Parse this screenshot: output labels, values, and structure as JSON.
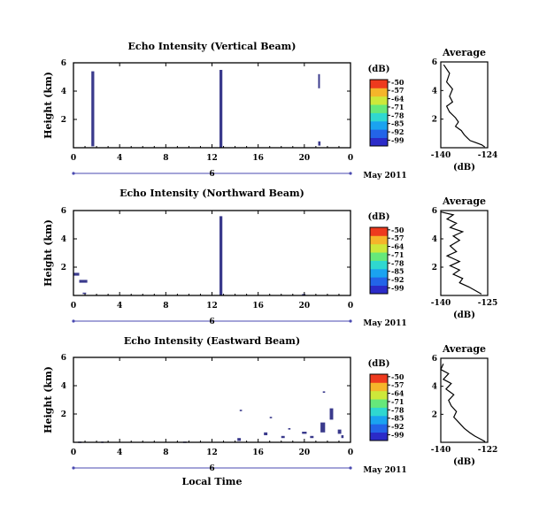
{
  "xlabel": "Local Time",
  "colorbar_ticks": [
    "-50",
    "-57",
    "-64",
    "-71",
    "-78",
    "-85",
    "-92",
    "-99"
  ],
  "colorbar_unit": "(dB)",
  "date_label": "May 2011",
  "day_label": "6",
  "x_ticks": [
    "0",
    "4",
    "8",
    "12",
    "16",
    "20",
    "0"
  ],
  "avg_xlabel": "(dB)",
  "chart_data": [
    {
      "type": "heatmap",
      "title": "Echo Intensity (Vertical Beam)",
      "ylabel": "Height (km)",
      "y_ticks": [
        "6",
        "4",
        "2"
      ],
      "xlim": [
        0,
        24
      ],
      "ylim": [
        0,
        6
      ],
      "echoes": [
        {
          "t0": 1.55,
          "t1": 1.8,
          "h0": 0.1,
          "h1": 5.4
        },
        {
          "t0": 12.65,
          "t1": 12.9,
          "h0": 0.0,
          "h1": 5.5
        },
        {
          "t0": 21.2,
          "t1": 21.4,
          "h0": 0.15,
          "h1": 0.45
        },
        {
          "t0": 21.2,
          "t1": 21.35,
          "h0": 4.2,
          "h1": 5.2
        }
      ]
    },
    {
      "type": "line",
      "title": "Average",
      "xlabel": "(dB)",
      "x_ticks": [
        "-140",
        "-124"
      ],
      "y_ticks": [
        "6",
        "4",
        "2"
      ],
      "xlim": [
        -140,
        -124
      ],
      "ylim": [
        0,
        6
      ],
      "x": [
        -139,
        -137,
        -138,
        -136,
        -137,
        -136,
        -138,
        -137,
        -135,
        -134,
        -135,
        -133,
        -132,
        -131,
        -130,
        -128,
        -126,
        -125
      ],
      "y": [
        5.8,
        5.2,
        4.6,
        4.1,
        3.6,
        3.2,
        2.9,
        2.5,
        2.1,
        1.8,
        1.5,
        1.2,
        0.9,
        0.7,
        0.5,
        0.35,
        0.2,
        0.05
      ]
    },
    {
      "type": "heatmap",
      "title": "Echo Intensity (Northward Beam)",
      "ylabel": "Height (km)",
      "y_ticks": [
        "6",
        "4",
        "2"
      ],
      "xlim": [
        0,
        24
      ],
      "ylim": [
        0,
        6
      ],
      "echoes": [
        {
          "t0": 12.65,
          "t1": 12.9,
          "h0": 0.0,
          "h1": 5.6
        },
        {
          "t0": 0.0,
          "t1": 0.5,
          "h0": 1.4,
          "h1": 1.6
        },
        {
          "t0": 0.5,
          "t1": 1.2,
          "h0": 0.9,
          "h1": 1.1
        },
        {
          "t0": 0.8,
          "t1": 1.1,
          "h0": 0.1,
          "h1": 0.2
        },
        {
          "t0": 19.8,
          "t1": 20.1,
          "h0": 0.0,
          "h1": 0.1
        }
      ]
    },
    {
      "type": "line",
      "title": "Average",
      "xlabel": "(dB)",
      "x_ticks": [
        "-140",
        "-125"
      ],
      "y_ticks": [
        "6",
        "4",
        "2"
      ],
      "xlim": [
        -140,
        -125
      ],
      "ylim": [
        0,
        6
      ],
      "x": [
        -140,
        -136,
        -138,
        -135,
        -137,
        -133,
        -136,
        -134,
        -137,
        -135,
        -138,
        -134,
        -137,
        -134,
        -136,
        -133,
        -134,
        -131,
        -129,
        -127
      ],
      "y": [
        5.9,
        5.7,
        5.4,
        5.1,
        4.8,
        4.5,
        4.2,
        3.9,
        3.5,
        3.1,
        2.8,
        2.4,
        2.1,
        1.8,
        1.5,
        1.2,
        0.9,
        0.6,
        0.35,
        0.1
      ]
    },
    {
      "type": "heatmap",
      "title": "Echo Intensity (Eastward Beam)",
      "ylabel": "Height (km)",
      "y_ticks": [
        "6",
        "4",
        "2"
      ],
      "xlim": [
        0,
        24
      ],
      "ylim": [
        0,
        6
      ],
      "echoes": [
        {
          "t0": 14.2,
          "t1": 14.5,
          "h0": 0.1,
          "h1": 0.3
        },
        {
          "t0": 14.4,
          "t1": 14.6,
          "h0": 2.2,
          "h1": 2.3
        },
        {
          "t0": 16.5,
          "t1": 16.8,
          "h0": 0.5,
          "h1": 0.7
        },
        {
          "t0": 17.0,
          "t1": 17.2,
          "h0": 1.7,
          "h1": 1.8
        },
        {
          "t0": 18.0,
          "t1": 18.3,
          "h0": 0.3,
          "h1": 0.45
        },
        {
          "t0": 18.6,
          "t1": 18.8,
          "h0": 0.9,
          "h1": 1.0
        },
        {
          "t0": 19.8,
          "t1": 20.2,
          "h0": 0.6,
          "h1": 0.75
        },
        {
          "t0": 20.5,
          "t1": 20.8,
          "h0": 0.3,
          "h1": 0.45
        },
        {
          "t0": 21.4,
          "t1": 21.8,
          "h0": 0.7,
          "h1": 1.4
        },
        {
          "t0": 21.6,
          "t1": 21.8,
          "h0": 3.5,
          "h1": 3.6
        },
        {
          "t0": 22.2,
          "t1": 22.5,
          "h0": 1.6,
          "h1": 2.4
        },
        {
          "t0": 22.9,
          "t1": 23.2,
          "h0": 0.6,
          "h1": 0.9
        },
        {
          "t0": 23.2,
          "t1": 23.4,
          "h0": 0.3,
          "h1": 0.5
        },
        {
          "t0": 0.4,
          "t1": 0.7,
          "h0": 0.0,
          "h1": 0.05
        },
        {
          "t0": 9.5,
          "t1": 9.8,
          "h0": 0.0,
          "h1": 0.05
        },
        {
          "t0": 2.4,
          "t1": 2.6,
          "h0": 0.0,
          "h1": 0.05
        }
      ]
    },
    {
      "type": "line",
      "title": "Average",
      "xlabel": "(dB)",
      "x_ticks": [
        "-140",
        "-122"
      ],
      "y_ticks": [
        "6",
        "4",
        "2"
      ],
      "xlim": [
        -140,
        -122
      ],
      "ylim": [
        0,
        6
      ],
      "x": [
        -139,
        -140,
        -137,
        -139,
        -136,
        -138,
        -135,
        -137,
        -136,
        -134,
        -135,
        -133,
        -131,
        -129,
        -127,
        -125,
        -123
      ],
      "y": [
        5.6,
        5.2,
        4.9,
        4.5,
        4.2,
        3.8,
        3.4,
        3.0,
        2.6,
        2.2,
        1.8,
        1.4,
        1.0,
        0.7,
        0.45,
        0.25,
        0.05
      ]
    }
  ]
}
